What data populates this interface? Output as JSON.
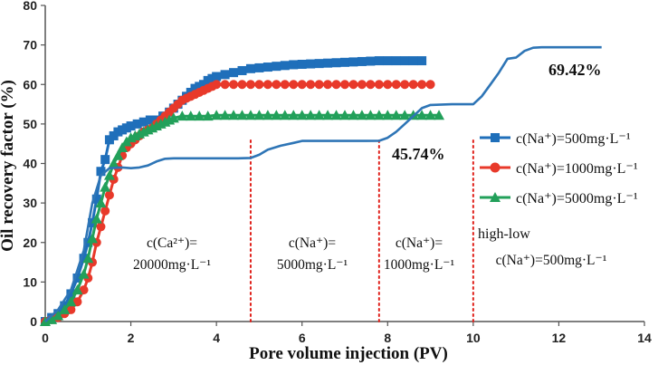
{
  "chart_data": {
    "type": "line",
    "title": "",
    "xlabel": "Pore volume injection  (PV)",
    "ylabel": "Oil recovery factor (%)",
    "xlim": [
      0,
      14
    ],
    "ylim": [
      0,
      80
    ],
    "xticks": [
      0,
      2,
      4,
      6,
      8,
      10,
      12,
      14
    ],
    "yticks": [
      0,
      10,
      20,
      30,
      40,
      50,
      60,
      70,
      80
    ],
    "grid": false,
    "series": [
      {
        "name": "c(Na⁺)=500mg·L⁻¹",
        "color": "#1f6fba",
        "marker": "square",
        "x": [
          0,
          0.15,
          0.3,
          0.45,
          0.6,
          0.75,
          0.9,
          1.0,
          1.1,
          1.2,
          1.3,
          1.4,
          1.5,
          1.6,
          1.7,
          1.8,
          1.9,
          2.0,
          2.15,
          2.3,
          2.45,
          2.6,
          2.75,
          2.9,
          3.0,
          3.1,
          3.2,
          3.3,
          3.4,
          3.5,
          3.6,
          3.7,
          3.8,
          3.9,
          4.0,
          4.2,
          4.4,
          4.6,
          4.8,
          5.0,
          5.2,
          5.4,
          5.6,
          5.8,
          6.0,
          6.2,
          6.4,
          6.6,
          6.8,
          7.0,
          7.2,
          7.4,
          7.6,
          7.8,
          8.0,
          8.2,
          8.4,
          8.6,
          8.8
        ],
        "values": [
          0,
          1,
          2,
          4,
          7,
          11,
          16,
          20,
          25,
          31,
          38,
          41,
          46,
          47,
          48,
          48.5,
          49,
          49.5,
          50,
          50.5,
          51,
          51,
          52,
          53,
          54,
          55,
          56,
          57,
          58,
          59,
          59.5,
          60,
          61,
          61.5,
          62,
          62.5,
          63,
          63.5,
          64,
          64.2,
          64.4,
          64.6,
          64.8,
          65,
          65.1,
          65.2,
          65.3,
          65.4,
          65.5,
          65.6,
          65.7,
          65.8,
          65.9,
          66,
          66,
          66,
          66,
          66,
          66
        ]
      },
      {
        "name": "c(Na⁺)=1000mg·L⁻¹",
        "color": "#e8392a",
        "marker": "circle",
        "x": [
          0,
          0.15,
          0.3,
          0.45,
          0.6,
          0.75,
          0.9,
          1.0,
          1.1,
          1.2,
          1.3,
          1.4,
          1.5,
          1.6,
          1.7,
          1.8,
          1.9,
          2.0,
          2.1,
          2.2,
          2.3,
          2.4,
          2.5,
          2.6,
          2.7,
          2.8,
          2.9,
          3.0,
          3.1,
          3.2,
          3.3,
          3.4,
          3.5,
          3.6,
          3.7,
          3.8,
          3.9,
          4.0,
          4.2,
          4.4,
          4.6,
          4.8,
          5.0,
          5.2,
          5.4,
          5.6,
          5.8,
          6.0,
          6.2,
          6.4,
          6.6,
          6.8,
          7.0,
          7.2,
          7.4,
          7.6,
          7.8,
          8.0,
          8.2,
          8.4,
          8.6,
          8.8,
          9.0
        ],
        "values": [
          0,
          0.5,
          1,
          2,
          3,
          5,
          8,
          11,
          15,
          20,
          24,
          28,
          32,
          36,
          39,
          42,
          44,
          45,
          46,
          47,
          48,
          48.5,
          49,
          50,
          51,
          52,
          53,
          54,
          55,
          56,
          56.5,
          57,
          57.5,
          58,
          58.5,
          59,
          59.5,
          60,
          60,
          60,
          60,
          60,
          60,
          60,
          60,
          60,
          60,
          60,
          60,
          60,
          60,
          60,
          60,
          60,
          60,
          60,
          60,
          60,
          60,
          60,
          60,
          60,
          60
        ]
      },
      {
        "name": "c(Na⁺)=5000mg·L⁻¹",
        "color": "#22a05a",
        "marker": "triangle",
        "x": [
          0,
          0.15,
          0.3,
          0.45,
          0.6,
          0.75,
          0.9,
          1.0,
          1.1,
          1.2,
          1.3,
          1.4,
          1.5,
          1.6,
          1.7,
          1.8,
          1.9,
          2.0,
          2.1,
          2.2,
          2.3,
          2.4,
          2.5,
          2.6,
          2.7,
          2.8,
          2.9,
          3.0,
          3.2,
          3.4,
          3.6,
          3.8,
          4.0,
          4.2,
          4.4,
          4.6,
          4.8,
          5.0,
          5.2,
          5.4,
          5.6,
          5.8,
          6.0,
          6.2,
          6.4,
          6.6,
          6.8,
          7.0,
          7.2,
          7.4,
          7.6,
          7.8,
          8.0,
          8.2,
          8.4,
          8.6,
          8.8,
          9.0,
          9.2
        ],
        "values": [
          0,
          0.5,
          1.5,
          3,
          5,
          8,
          12,
          16,
          21,
          26,
          30,
          34,
          37,
          40,
          42,
          44,
          45.5,
          46.5,
          47,
          47.5,
          48,
          48.5,
          49,
          49.5,
          50,
          50.5,
          51,
          51.5,
          52,
          52,
          52,
          52,
          52.2,
          52.2,
          52.2,
          52.2,
          52.2,
          52.2,
          52.2,
          52.2,
          52.2,
          52.2,
          52.2,
          52.2,
          52.2,
          52.2,
          52.2,
          52.2,
          52.2,
          52.2,
          52.2,
          52.2,
          52.2,
          52.2,
          52.2,
          52.2,
          52.2,
          52.2,
          52.2
        ]
      },
      {
        "name": "high-low",
        "color": "#2e75b6",
        "marker": "none",
        "x": [
          0,
          0.3,
          0.6,
          0.9,
          1.1,
          1.3,
          1.5,
          1.8,
          2.0,
          2.2,
          2.4,
          2.6,
          2.8,
          3.0,
          3.5,
          4.0,
          4.5,
          4.8,
          5.0,
          5.2,
          5.5,
          5.8,
          6.0,
          6.5,
          7.0,
          7.5,
          7.8,
          8.0,
          8.2,
          8.4,
          8.6,
          8.8,
          9.0,
          9.5,
          10.0,
          10.2,
          10.4,
          10.6,
          10.8,
          11.0,
          11.2,
          11.4,
          11.6,
          12.0,
          12.5,
          13.0
        ],
        "values": [
          0,
          3,
          8,
          18,
          30,
          37,
          38.8,
          39,
          38.8,
          39,
          39.5,
          40.5,
          41.2,
          41.3,
          41.3,
          41.3,
          41.3,
          41.4,
          42.2,
          43.5,
          44.5,
          45.2,
          45.7,
          45.7,
          45.7,
          45.7,
          45.74,
          46.5,
          48,
          50,
          52,
          54,
          54.8,
          55.0,
          55.0,
          57,
          60,
          63,
          66.5,
          66.8,
          68.5,
          69.3,
          69.42,
          69.42,
          69.42,
          69.42
        ]
      }
    ],
    "region_dividers": [
      4.8,
      7.8,
      10.0
    ],
    "annotations": {
      "region1_line1": "c(Ca²⁺)=",
      "region1_line2": "20000mg·L⁻¹",
      "region2_line1": "c(Na⁺)=",
      "region2_line2": "5000mg·L⁻¹",
      "region3_line1": "c(Na⁺)=",
      "region3_line2": "1000mg·L⁻¹",
      "region4": "c(Na⁺)=500mg·L⁻¹",
      "pct_low": "45.74%",
      "pct_high": "69.42%"
    },
    "legend_position": "right"
  }
}
